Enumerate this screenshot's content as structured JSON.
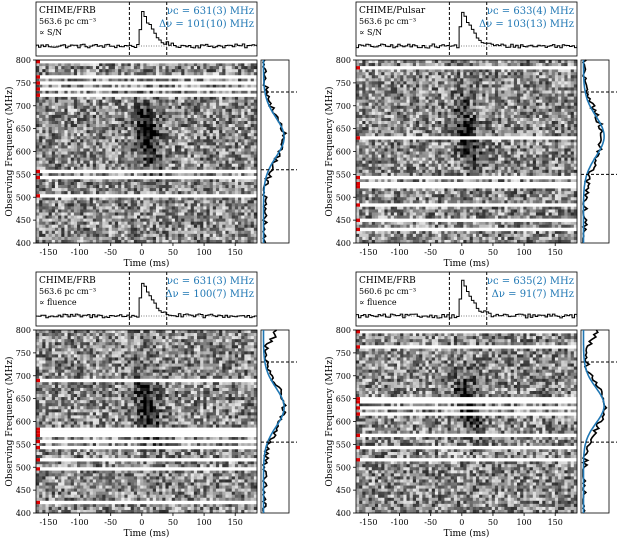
{
  "figure": {
    "title": ""
  },
  "shared": {
    "xlabel": "Time (ms)",
    "ylabel": "Observing Frequency (MHz)",
    "xlim": [
      -170,
      185
    ],
    "ylim": [
      400,
      800
    ],
    "xticks": [
      -150,
      -100,
      -50,
      0,
      50,
      100,
      150
    ],
    "yticks": [
      400,
      450,
      500,
      550,
      600,
      650,
      700,
      750,
      800
    ],
    "fit_color": "#1f77b4"
  },
  "chart_data": [
    {
      "type": "heatmap",
      "label_line1": "CHIME/FRB",
      "label_line2": "563.6 pc cm⁻³",
      "label_line3": "∝ S/N",
      "nu_c_text": "νᴄ = 631(3) MHz",
      "dnu_text": "Δν = 101(10) MHz",
      "nu_c": 631,
      "dnu": 101,
      "burst_window": [
        -20,
        40
      ],
      "band_limits": [
        560,
        730
      ],
      "spectrum_profile": {
        "frequency": [
          400,
          420,
          440,
          460,
          480,
          500,
          520,
          540,
          560,
          580,
          600,
          620,
          640,
          660,
          680,
          700,
          720,
          740,
          760,
          780,
          800
        ],
        "intensity": [
          0.02,
          0.03,
          0.05,
          0.05,
          0.08,
          0.1,
          0.12,
          0.2,
          0.35,
          0.55,
          0.7,
          0.82,
          0.88,
          0.78,
          0.55,
          0.35,
          0.2,
          0.12,
          0.08,
          0.05,
          0.03
        ]
      }
    },
    {
      "type": "heatmap",
      "label_line1": "CHIME/Pulsar",
      "label_line2": "563.6 pc cm⁻³",
      "label_line3": "∝ S/N",
      "nu_c_text": "νᴄ = 633(4) MHz",
      "dnu_text": "Δν = 103(13) MHz",
      "nu_c": 633,
      "dnu": 103,
      "burst_window": [
        -20,
        40
      ],
      "band_limits": [
        550,
        730
      ],
      "spectrum_profile": {
        "frequency": [
          400,
          420,
          440,
          460,
          480,
          500,
          520,
          540,
          560,
          580,
          600,
          620,
          640,
          660,
          680,
          700,
          720,
          740,
          760,
          780,
          800
        ],
        "intensity": [
          0.05,
          0.04,
          0.06,
          0.08,
          0.1,
          0.12,
          0.14,
          0.22,
          0.38,
          0.52,
          0.66,
          0.78,
          0.8,
          0.7,
          0.55,
          0.38,
          0.24,
          0.14,
          0.1,
          0.06,
          0.05
        ]
      }
    },
    {
      "type": "heatmap",
      "label_line1": "CHIME/FRB",
      "label_line2": "563.6 pc cm⁻³",
      "label_line3": "∝ fluence",
      "nu_c_text": "νᴄ = 631(3) MHz",
      "dnu_text": "Δν = 100(7) MHz",
      "nu_c": 631,
      "dnu": 100,
      "burst_window": [
        -20,
        40
      ],
      "band_limits": [
        555,
        730
      ],
      "spectrum_profile": {
        "frequency": [
          400,
          420,
          440,
          460,
          480,
          500,
          520,
          540,
          560,
          580,
          600,
          620,
          640,
          660,
          680,
          700,
          720,
          740,
          760,
          780,
          800
        ],
        "intensity": [
          0.02,
          0.03,
          0.04,
          0.05,
          0.06,
          0.08,
          0.12,
          0.2,
          0.35,
          0.55,
          0.72,
          0.84,
          0.88,
          0.78,
          0.55,
          0.36,
          0.2,
          0.12,
          0.1,
          0.4,
          0.55
        ]
      }
    },
    {
      "type": "heatmap",
      "label_line1": "CHIME/FRB",
      "label_line2": "560.6 pc cm⁻³",
      "label_line3": "∝ fluence",
      "nu_c_text": "νᴄ = 635(2) MHz",
      "dnu_text": "Δν = 91(7) MHz",
      "nu_c": 635,
      "dnu": 91,
      "burst_window": [
        -20,
        40
      ],
      "band_limits": [
        555,
        730
      ],
      "spectrum_profile": {
        "frequency": [
          400,
          420,
          440,
          460,
          480,
          500,
          520,
          540,
          560,
          580,
          600,
          620,
          640,
          660,
          680,
          700,
          720,
          740,
          760,
          780,
          800
        ],
        "intensity": [
          0.02,
          0.02,
          0.03,
          0.04,
          0.05,
          0.07,
          0.1,
          0.18,
          0.32,
          0.52,
          0.72,
          0.86,
          0.9,
          0.8,
          0.55,
          0.34,
          0.18,
          0.1,
          0.08,
          0.45,
          0.6
        ]
      }
    }
  ]
}
